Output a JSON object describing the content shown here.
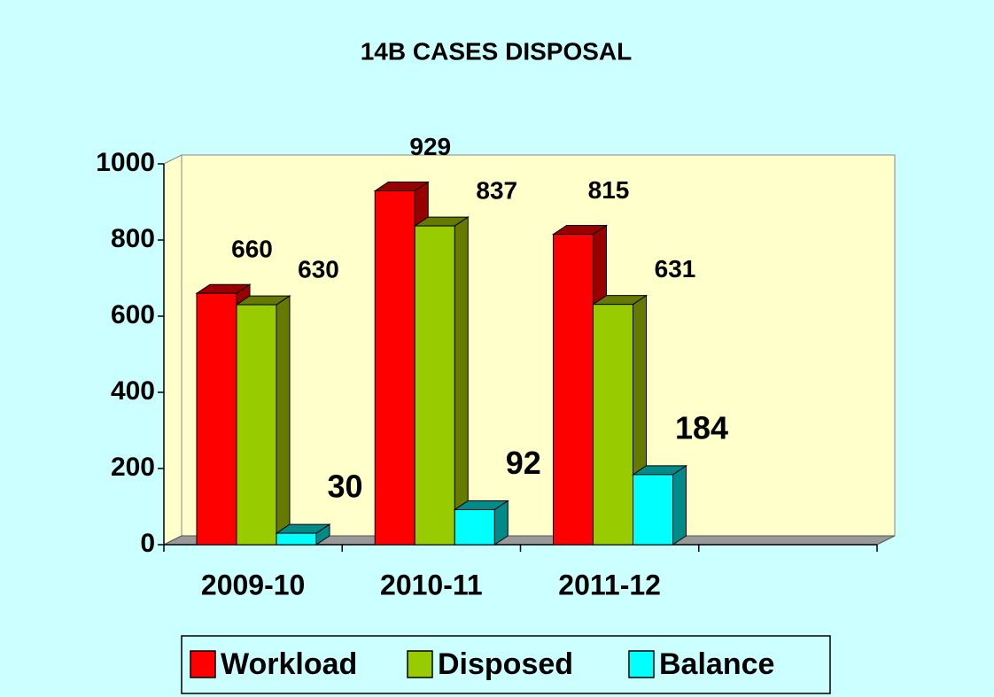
{
  "chart_data": {
    "type": "bar3d",
    "title": "14B CASES DISPOSAL",
    "categories": [
      "2009-10",
      "2010-11",
      "2011-12",
      null
    ],
    "series": [
      {
        "name": "Workload",
        "color": "#ff0000",
        "values": [
          660,
          929,
          815,
          null
        ]
      },
      {
        "name": "Disposed",
        "color": "#99cc00",
        "values": [
          630,
          837,
          631,
          null
        ]
      },
      {
        "name": "Balance",
        "color": "#00ffff",
        "values": [
          30,
          92,
          184,
          null
        ]
      }
    ],
    "ylim": [
      0,
      1000
    ],
    "yticks": [
      0,
      200,
      400,
      600,
      800,
      1000
    ],
    "legend": "bottom"
  }
}
